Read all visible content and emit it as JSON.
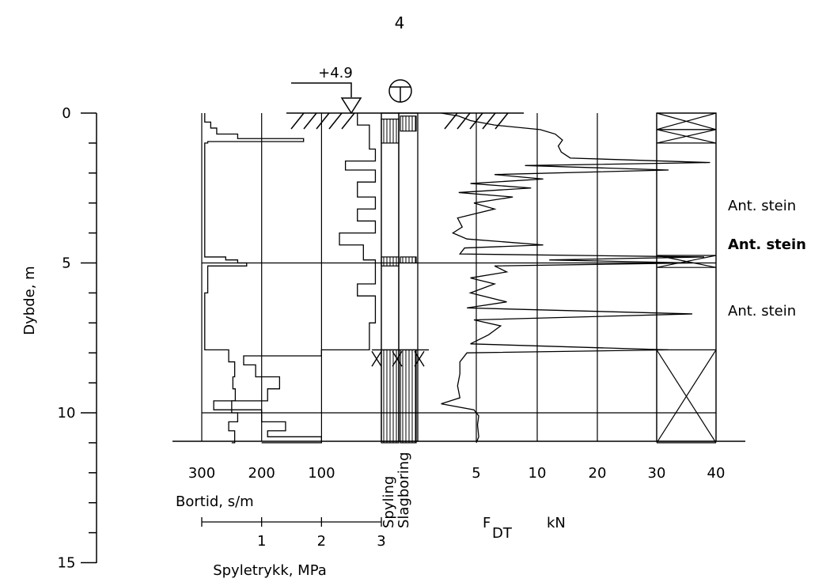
{
  "page": {
    "number": "4"
  },
  "chart_data": {
    "type": "line",
    "title": "",
    "depth_axis": {
      "label": "Dybde, m",
      "range": [
        0,
        15
      ],
      "ticks": [
        0,
        5,
        10,
        15
      ],
      "tick_labels": [
        "0",
        "5",
        "10",
        "15"
      ]
    },
    "elevation_marker": "+4.9",
    "left_panel": {
      "bortid": {
        "label": "Bortid, s/m",
        "ticks": [
          300,
          200,
          100
        ],
        "tick_labels": [
          "300",
          "200",
          "100"
        ]
      },
      "spyletrykk": {
        "label": "Spyletrykk, MPa",
        "ticks": [
          1,
          2,
          3
        ],
        "tick_labels": [
          "1",
          "2",
          "3"
        ]
      }
    },
    "method_columns": [
      "Spyling",
      "Slagboring"
    ],
    "right_panel": {
      "label_main": "F",
      "label_sub": "DT",
      "label_unit": "kN",
      "ticks": [
        5,
        10,
        20,
        30,
        40
      ],
      "tick_labels": [
        "5",
        "10",
        "20",
        "30",
        "40"
      ]
    },
    "annotations": [
      {
        "text": "Ant. stein",
        "depth": 3.0,
        "bold": false
      },
      {
        "text": "Ant. stein",
        "depth": 4.3,
        "bold": true
      },
      {
        "text": "Ant. stein",
        "depth": 6.6,
        "bold": false
      }
    ],
    "bortid_profile": [
      [
        0.0,
        295
      ],
      [
        0.3,
        285
      ],
      [
        0.5,
        275
      ],
      [
        0.7,
        240
      ],
      [
        0.85,
        130
      ],
      [
        0.95,
        290
      ],
      [
        1.0,
        295
      ],
      [
        3.0,
        295
      ],
      [
        4.7,
        295
      ],
      [
        4.8,
        260
      ],
      [
        4.9,
        240
      ],
      [
        5.0,
        225
      ],
      [
        5.1,
        290
      ],
      [
        6.0,
        295
      ],
      [
        7.0,
        295
      ],
      [
        7.7,
        295
      ],
      [
        7.9,
        255
      ],
      [
        8.3,
        245
      ],
      [
        8.8,
        248
      ],
      [
        9.2,
        244
      ],
      [
        9.6,
        250
      ],
      [
        10.0,
        240
      ],
      [
        10.3,
        255
      ],
      [
        10.6,
        245
      ],
      [
        11.0,
        250
      ]
    ],
    "spyletrykk_profile": [
      [
        0.0,
        2.6
      ],
      [
        0.4,
        2.8
      ],
      [
        0.8,
        2.8
      ],
      [
        1.2,
        2.9
      ],
      [
        1.6,
        2.4
      ],
      [
        1.9,
        2.9
      ],
      [
        2.3,
        2.6
      ],
      [
        2.8,
        2.9
      ],
      [
        3.2,
        2.6
      ],
      [
        3.6,
        2.9
      ],
      [
        4.0,
        2.3
      ],
      [
        4.4,
        2.7
      ],
      [
        4.9,
        2.9
      ],
      [
        5.3,
        2.9
      ],
      [
        5.7,
        2.6
      ],
      [
        6.1,
        2.9
      ],
      [
        6.6,
        2.9
      ],
      [
        7.0,
        2.8
      ],
      [
        7.5,
        2.8
      ],
      [
        7.9,
        2.0
      ],
      [
        8.1,
        0.7
      ],
      [
        8.4,
        0.9
      ],
      [
        8.8,
        1.3
      ],
      [
        9.2,
        1.1
      ],
      [
        9.6,
        0.2
      ],
      [
        9.9,
        1.0
      ],
      [
        10.3,
        1.4
      ],
      [
        10.6,
        1.1
      ],
      [
        10.8,
        2.0
      ],
      [
        11.0,
        1.0
      ]
    ],
    "fdt_profile": [
      [
        0.0,
        2.0
      ],
      [
        0.1,
        3.5
      ],
      [
        0.25,
        4.5
      ],
      [
        0.4,
        6.5
      ],
      [
        0.55,
        10.5
      ],
      [
        0.7,
        13.0
      ],
      [
        0.9,
        14.2
      ],
      [
        1.1,
        13.5
      ],
      [
        1.3,
        14.0
      ],
      [
        1.5,
        15.5
      ],
      [
        1.65,
        39.0
      ],
      [
        1.75,
        9.0
      ],
      [
        1.9,
        32.0
      ],
      [
        2.05,
        6.5
      ],
      [
        2.2,
        11.0
      ],
      [
        2.35,
        4.5
      ],
      [
        2.5,
        9.5
      ],
      [
        2.65,
        3.5
      ],
      [
        2.8,
        8.0
      ],
      [
        3.0,
        4.8
      ],
      [
        3.2,
        6.5
      ],
      [
        3.5,
        3.4
      ],
      [
        3.8,
        3.8
      ],
      [
        4.0,
        3.0
      ],
      [
        4.2,
        4.2
      ],
      [
        4.4,
        11.0
      ],
      [
        4.5,
        4.0
      ],
      [
        4.7,
        3.6
      ],
      [
        4.8,
        38.0
      ],
      [
        4.9,
        12.0
      ],
      [
        5.0,
        36.0
      ],
      [
        5.1,
        6.5
      ],
      [
        5.3,
        7.5
      ],
      [
        5.5,
        4.5
      ],
      [
        5.7,
        6.5
      ],
      [
        6.0,
        4.5
      ],
      [
        6.3,
        7.5
      ],
      [
        6.5,
        4.2
      ],
      [
        6.7,
        36.0
      ],
      [
        6.9,
        4.8
      ],
      [
        7.1,
        7.0
      ],
      [
        7.4,
        6.0
      ],
      [
        7.7,
        4.5
      ],
      [
        7.9,
        32.0
      ],
      [
        8.0,
        4.2
      ],
      [
        8.3,
        3.6
      ],
      [
        8.7,
        3.6
      ],
      [
        9.1,
        3.4
      ],
      [
        9.5,
        3.6
      ],
      [
        9.7,
        2.0
      ],
      [
        9.9,
        4.8
      ],
      [
        10.1,
        5.2
      ],
      [
        10.4,
        5.1
      ],
      [
        10.8,
        5.2
      ],
      [
        11.0,
        5.0
      ]
    ]
  }
}
